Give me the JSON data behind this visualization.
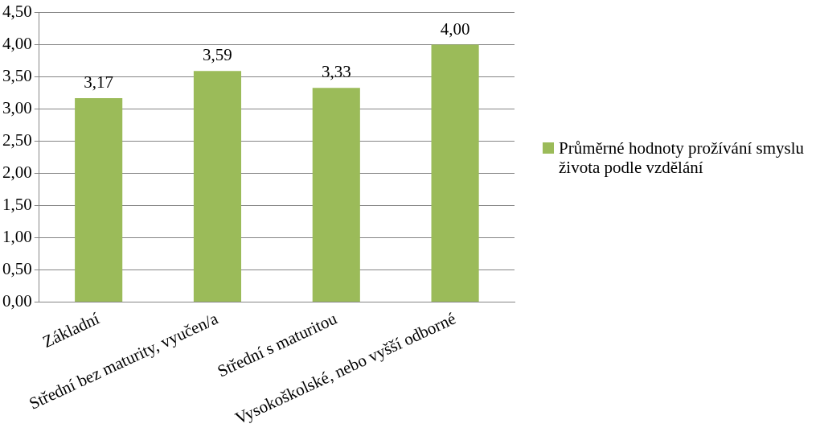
{
  "chart_data": {
    "type": "bar",
    "categories": [
      "Základní",
      "Střední bez maturity, vyučen/a",
      "Střední s maturitou",
      "Vysokoškolské, nebo vyšší odborné"
    ],
    "series": [
      {
        "name": "Průměrné hodnoty prožívání smyslu života podle vzdělání",
        "color": "#9bbb59",
        "values": [
          3.17,
          3.59,
          3.33,
          4.0
        ],
        "value_labels": [
          "3,17",
          "3,59",
          "3,33",
          "4,00"
        ]
      }
    ],
    "ylim": [
      0,
      4.5
    ],
    "yticks": [
      {
        "value": 0,
        "label": "0,00"
      },
      {
        "value": 0.5,
        "label": "0,50"
      },
      {
        "value": 1,
        "label": "1,00"
      },
      {
        "value": 1.5,
        "label": "1,50"
      },
      {
        "value": 2,
        "label": "2,00"
      },
      {
        "value": 2.5,
        "label": "2,50"
      },
      {
        "value": 3,
        "label": "3,00"
      },
      {
        "value": 3.5,
        "label": "3,50"
      },
      {
        "value": 4,
        "label": "4,00"
      },
      {
        "value": 4.5,
        "label": "4,50"
      }
    ],
    "grid": "y",
    "legend": "right"
  }
}
